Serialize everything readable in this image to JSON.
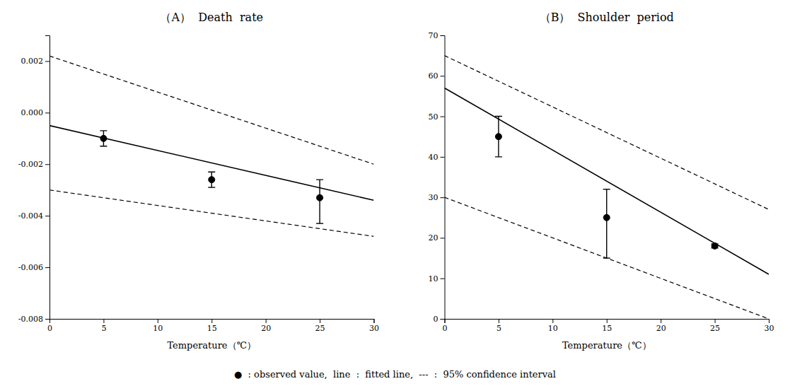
{
  "chart_data": [
    {
      "type": "line",
      "title": "（A）  Death  rate",
      "x_label": "Temperature（℃）",
      "xlim": [
        0,
        30
      ],
      "ylim": [
        -0.008,
        0.003
      ],
      "xticks": [
        0,
        5,
        10,
        15,
        20,
        25,
        30
      ],
      "yticks": [
        0.002,
        {
          "value": 0.0,
          "label": "0.000"
        },
        -0.002,
        -0.004,
        -0.006,
        -0.008
      ],
      "grid": false,
      "annotations": [
        "●  : observed value,  line  :  fitted line,  ---  :  95% confidence interval"
      ],
      "series": [
        {
          "type": "line",
          "line_style": "dashed",
          "color": "#000000",
          "x": [
            0,
            30
          ],
          "values": [
            0.0022,
            -0.002
          ]
        },
        {
          "type": "line",
          "line_style": "dashed",
          "color": "#000000",
          "x": [
            0,
            30
          ],
          "values": [
            -0.003,
            -0.0048
          ]
        },
        {
          "type": "line",
          "line_style": "solid",
          "color": "#000000",
          "x": [
            0,
            30
          ],
          "values": [
            -0.0005,
            -0.0034
          ]
        },
        {
          "type": "scatter",
          "marker": "circle",
          "color": "#000000",
          "x": [
            5,
            15,
            25
          ],
          "values": [
            -0.001,
            -0.0026,
            -0.0033
          ],
          "error_low": [
            0.0003,
            0.0003,
            0.001
          ],
          "error_high": [
            0.0003,
            0.0003,
            0.0007
          ]
        }
      ]
    },
    {
      "type": "line",
      "title": "（B）  Shoulder  period",
      "x_label": "Temperature（℃）",
      "xlim": [
        0,
        30
      ],
      "ylim": [
        0,
        70
      ],
      "xticks": [
        0,
        5,
        10,
        15,
        20,
        25,
        30
      ],
      "yticks": [
        0,
        10,
        20,
        30,
        40,
        50,
        60,
        70
      ],
      "grid": false,
      "series": [
        {
          "type": "line",
          "line_style": "dashed",
          "color": "#000000",
          "x": [
            0,
            30
          ],
          "values": [
            65,
            27
          ]
        },
        {
          "type": "line",
          "line_style": "dashed",
          "color": "#000000",
          "x": [
            0,
            30
          ],
          "values": [
            30,
            0
          ]
        },
        {
          "type": "line",
          "line_style": "solid",
          "color": "#000000",
          "x": [
            0,
            30
          ],
          "values": [
            57,
            11
          ]
        },
        {
          "type": "scatter",
          "marker": "circle",
          "color": "#000000",
          "x": [
            5,
            15,
            25
          ],
          "values": [
            45,
            25,
            18
          ],
          "error_low": [
            5,
            10,
            0.5
          ],
          "error_high": [
            5,
            7,
            0.5
          ]
        }
      ]
    }
  ]
}
